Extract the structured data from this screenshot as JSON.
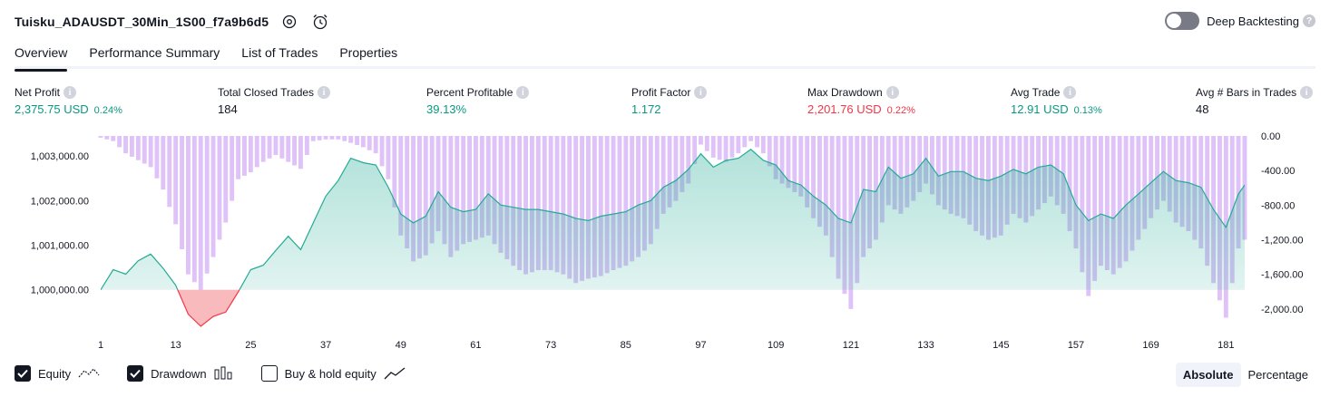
{
  "header": {
    "title": "Tuisku_ADAUSDT_30Min_1S00_f7a9b6d5"
  },
  "deep_backtesting": {
    "label": "Deep Backtesting",
    "help": "?"
  },
  "tabs": [
    {
      "label": "Overview"
    },
    {
      "label": "Performance Summary"
    },
    {
      "label": "List of Trades"
    },
    {
      "label": "Properties"
    }
  ],
  "metrics": [
    {
      "label": "Net Profit",
      "value": "2,375.75 USD",
      "pct": "0.24%",
      "color": "#089981"
    },
    {
      "label": "Total Closed Trades",
      "value": "184",
      "pct": "",
      "color": "#131722"
    },
    {
      "label": "Percent Profitable",
      "value": "39.13%",
      "pct": "",
      "color": "#089981"
    },
    {
      "label": "Profit Factor",
      "value": "1.172",
      "pct": "",
      "color": "#089981"
    },
    {
      "label": "Max Drawdown",
      "value": "2,201.76 USD",
      "pct": "0.22%",
      "color": "#f23645"
    },
    {
      "label": "Avg Trade",
      "value": "12.91 USD",
      "pct": "0.13%",
      "color": "#089981"
    },
    {
      "label": "Avg # Bars in Trades",
      "value": "48",
      "pct": "",
      "color": "#131722"
    }
  ],
  "legend": {
    "equity": "Equity",
    "drawdown": "Drawdown",
    "buyhold": "Buy & hold equity"
  },
  "modes": {
    "absolute": "Absolute",
    "percentage": "Percentage"
  },
  "colors": {
    "equity_line": "#22ab94",
    "equity_fill": "#d5efe9",
    "loss_fill": "#f7a9ae",
    "loss_line": "#f23645",
    "drawdown_bar": "#d9b8f7"
  },
  "chart_data": {
    "type": "line",
    "equity_axis": {
      "ticks": [
        "1,000,000.00",
        "1,001,000.00",
        "1,002,000.00",
        "1,003,000.00"
      ],
      "tick_values": [
        1000000,
        1001000,
        1002000,
        1003000
      ],
      "range": [
        999180,
        1003450
      ]
    },
    "drawdown_axis": {
      "ticks": [
        "0.00",
        "-400.00",
        "-800.00",
        "-1,200.00",
        "-1,600.00",
        "-2,000.00"
      ],
      "tick_values": [
        0,
        -400,
        -800,
        -1200,
        -1600,
        -2000
      ],
      "range": [
        -2200,
        0
      ]
    },
    "x_ticks": [
      1,
      13,
      25,
      37,
      49,
      61,
      73,
      85,
      97,
      109,
      121,
      133,
      145,
      157,
      169,
      181
    ],
    "x_range": [
      1,
      184
    ],
    "series": [
      {
        "name": "Equity",
        "x": [
          1,
          3,
          5,
          7,
          9,
          11,
          13,
          15,
          17,
          19,
          21,
          23,
          25,
          27,
          29,
          31,
          33,
          35,
          37,
          39,
          41,
          43,
          45,
          47,
          49,
          51,
          53,
          55,
          57,
          59,
          61,
          63,
          65,
          67,
          69,
          71,
          73,
          75,
          77,
          79,
          81,
          83,
          85,
          87,
          89,
          91,
          93,
          95,
          97,
          99,
          101,
          103,
          105,
          107,
          109,
          111,
          113,
          115,
          117,
          119,
          121,
          123,
          125,
          127,
          129,
          131,
          133,
          135,
          137,
          139,
          141,
          143,
          145,
          147,
          149,
          151,
          153,
          155,
          157,
          159,
          161,
          163,
          165,
          167,
          169,
          171,
          173,
          175,
          177,
          179,
          181,
          183,
          184
        ],
        "values": [
          1000000,
          1000450,
          1000350,
          1000650,
          1000800,
          1000480,
          1000100,
          999450,
          999180,
          999400,
          999500,
          999950,
          1000450,
          1000550,
          1000880,
          1001200,
          1000900,
          1001500,
          1002100,
          1002450,
          1002950,
          1002850,
          1002800,
          1002300,
          1001700,
          1001500,
          1001650,
          1002200,
          1001850,
          1001750,
          1001800,
          1002150,
          1001900,
          1001850,
          1001800,
          1001800,
          1001750,
          1001700,
          1001600,
          1001550,
          1001650,
          1001700,
          1001750,
          1001900,
          1002000,
          1002300,
          1002450,
          1002700,
          1003050,
          1002750,
          1002900,
          1002950,
          1003150,
          1002900,
          1002800,
          1002450,
          1002350,
          1002100,
          1001900,
          1001600,
          1001500,
          1002250,
          1002200,
          1002750,
          1002500,
          1002600,
          1002950,
          1002550,
          1002650,
          1002650,
          1002500,
          1002450,
          1002550,
          1002700,
          1002600,
          1002750,
          1002800,
          1002600,
          1001900,
          1001550,
          1001700,
          1001600,
          1001900,
          1002150,
          1002400,
          1002650,
          1002450,
          1002400,
          1002300,
          1001800,
          1001400,
          1002150,
          1002350
        ]
      },
      {
        "name": "Drawdown",
        "x": [
          1,
          3,
          5,
          7,
          9,
          11,
          13,
          15,
          17,
          19,
          21,
          23,
          25,
          27,
          29,
          31,
          33,
          35,
          37,
          39,
          41,
          43,
          45,
          47,
          49,
          51,
          53,
          55,
          57,
          59,
          61,
          63,
          65,
          67,
          69,
          71,
          73,
          75,
          77,
          79,
          81,
          83,
          85,
          87,
          89,
          91,
          93,
          95,
          97,
          99,
          101,
          103,
          105,
          107,
          109,
          111,
          113,
          115,
          117,
          119,
          121,
          123,
          125,
          127,
          129,
          131,
          133,
          135,
          137,
          139,
          141,
          143,
          145,
          147,
          149,
          151,
          153,
          155,
          157,
          159,
          161,
          163,
          165,
          167,
          169,
          171,
          173,
          175,
          177,
          179,
          181,
          183,
          184
        ],
        "values": [
          -20,
          -60,
          -200,
          -280,
          -360,
          -620,
          -1020,
          -1600,
          -1780,
          -1400,
          -1000,
          -500,
          -420,
          -300,
          -220,
          -300,
          -380,
          -60,
          -40,
          -40,
          -80,
          -130,
          -200,
          -500,
          -1150,
          -1450,
          -1380,
          -1100,
          -1400,
          -1250,
          -1200,
          -1150,
          -1350,
          -1500,
          -1600,
          -1550,
          -1550,
          -1600,
          -1700,
          -1650,
          -1620,
          -1550,
          -1500,
          -1400,
          -1250,
          -900,
          -750,
          -550,
          -100,
          -250,
          -300,
          -200,
          -60,
          -200,
          -500,
          -600,
          -700,
          -950,
          -1150,
          -1650,
          -2000,
          -1400,
          -1200,
          -800,
          -900,
          -750,
          -550,
          -800,
          -900,
          -950,
          -1100,
          -1200,
          -1150,
          -900,
          -1000,
          -850,
          -700,
          -900,
          -1300,
          -1850,
          -1500,
          -1600,
          -1450,
          -1200,
          -950,
          -750,
          -1000,
          -1100,
          -1300,
          -1700,
          -2100,
          -1300,
          -1200
        ]
      }
    ]
  }
}
